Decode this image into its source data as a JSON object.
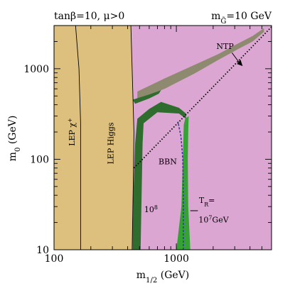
{
  "chart_data": {
    "type": "area",
    "title_left": "tanβ=10, μ>0",
    "title_right": "m",
    "title_right_sub": "G̃",
    "title_right_value": "=10 GeV",
    "xlabel": "m",
    "xlabel_sub": "1/2",
    "xlabel_unit": " (GeV)",
    "ylabel": "m",
    "ylabel_sub": "0",
    "ylabel_unit": " (GeV)",
    "x_scale": "log",
    "y_scale": "log",
    "xlim": [
      100,
      6000
    ],
    "ylim": [
      10,
      3000
    ],
    "x_ticks": [
      100,
      1000
    ],
    "y_ticks": [
      10,
      100,
      1000
    ],
    "grid": false,
    "colors": {
      "lep_excluded": "#ddc07e",
      "allowed_region": "#dca6d3",
      "ntp_band": "#8e8a70",
      "bbn_band": "#2f6d2f",
      "tr_band": "#35a236",
      "diagonal": "#000000",
      "tr_curve": "#3a3aa8"
    },
    "regions": [
      {
        "name": "LEP excluded",
        "points": [
          [
            100,
            10
          ],
          [
            430,
            10
          ],
          [
            440,
            50
          ],
          [
            450,
            150
          ],
          [
            445,
            400
          ],
          [
            430,
            3000
          ],
          [
            100,
            3000
          ]
        ]
      },
      {
        "name": "allowed",
        "points": [
          [
            430,
            10
          ],
          [
            6000,
            10
          ],
          [
            6000,
            3000
          ],
          [
            430,
            3000
          ]
        ]
      },
      {
        "name": "NTP",
        "points": [
          [
            480,
            560
          ],
          [
            800,
            780
          ],
          [
            1400,
            1100
          ],
          [
            2200,
            1450
          ],
          [
            3200,
            1900
          ],
          [
            4200,
            2300
          ],
          [
            5200,
            2800
          ],
          [
            5200,
            2550
          ],
          [
            4200,
            2000
          ],
          [
            3200,
            1650
          ],
          [
            2200,
            1250
          ],
          [
            1400,
            880
          ],
          [
            800,
            600
          ],
          [
            480,
            460
          ]
        ]
      },
      {
        "name": "BBN 10^8",
        "points": [
          [
            440,
            15
          ],
          [
            445,
            40
          ],
          [
            460,
            150
          ],
          [
            480,
            280
          ],
          [
            600,
            360
          ],
          [
            750,
            430
          ],
          [
            1050,
            370
          ],
          [
            1200,
            320
          ],
          [
            1200,
            280
          ],
          [
            1050,
            320
          ],
          [
            700,
            330
          ],
          [
            540,
            250
          ],
          [
            530,
            150
          ],
          [
            520,
            40
          ],
          [
            510,
            10
          ],
          [
            440,
            10
          ]
        ]
      },
      {
        "name": "BBN 10^8 upper",
        "points": [
          [
            440,
            455
          ],
          [
            600,
            520
          ],
          [
            700,
            560
          ],
          [
            750,
            580
          ],
          [
            720,
            530
          ],
          [
            600,
            470
          ],
          [
            460,
            410
          ]
        ]
      },
      {
        "name": "TR 10^7",
        "points": [
          [
            1000,
            10
          ],
          [
            1100,
            30
          ],
          [
            1130,
            100
          ],
          [
            1150,
            240
          ],
          [
            1180,
            280
          ],
          [
            1260,
            300
          ],
          [
            1250,
            200
          ],
          [
            1240,
            100
          ],
          [
            1250,
            30
          ],
          [
            1300,
            10
          ]
        ]
      }
    ],
    "series": [
      {
        "name": "T_R=10^7 GeV",
        "points": [
          [
            1140,
            10
          ],
          [
            1140,
            40
          ],
          [
            1130,
            100
          ],
          [
            1090,
            180
          ],
          [
            1030,
            260
          ]
        ]
      }
    ],
    "diagonal": [
      [
        450,
        80
      ],
      [
        6000,
        2900
      ]
    ],
    "annotations": {
      "ntp": "NTP",
      "lep_chargino": "LEP χ",
      "lep_chargino_sup": "+",
      "lep_higgs": "LEP Higgs",
      "bbn": "BBN",
      "ten8": "10",
      "ten8_sup": "8",
      "tr_label": "T",
      "tr_sub": "R",
      "tr_eq": "=",
      "ten7": "10",
      "ten7_sup": "7",
      "gev": "GeV"
    }
  }
}
